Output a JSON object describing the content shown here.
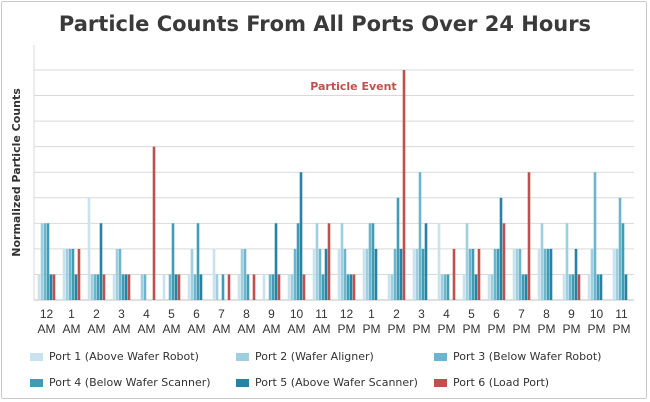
{
  "chart_data": {
    "type": "bar",
    "title": "Particle Counts From All Ports Over 24 Hours",
    "ylabel": "Normalized Particle Counts",
    "xlabel": "",
    "ylim": [
      0,
      9
    ],
    "grid": true,
    "legend_position": "bottom",
    "categories": [
      [
        "12",
        "AM"
      ],
      [
        "1",
        "AM"
      ],
      [
        "2",
        "AM"
      ],
      [
        "3",
        "AM"
      ],
      [
        "4",
        "AM"
      ],
      [
        "5",
        "AM"
      ],
      [
        "6",
        "AM"
      ],
      [
        "7",
        "AM"
      ],
      [
        "8",
        "AM"
      ],
      [
        "9",
        "AM"
      ],
      [
        "10",
        "AM"
      ],
      [
        "11",
        "AM"
      ],
      [
        "12",
        "PM"
      ],
      [
        "1",
        "PM"
      ],
      [
        "2",
        "PM"
      ],
      [
        "3",
        "PM"
      ],
      [
        "4",
        "PM"
      ],
      [
        "5",
        "PM"
      ],
      [
        "6",
        "PM"
      ],
      [
        "7",
        "PM"
      ],
      [
        "8",
        "PM"
      ],
      [
        "9",
        "PM"
      ],
      [
        "10",
        "PM"
      ],
      [
        "11",
        "PM"
      ]
    ],
    "series": [
      {
        "name": "Port 1 (Above Wafer Robot)",
        "color": "#c9e2ee",
        "values": [
          1,
          2,
          4,
          1,
          0,
          1,
          1,
          2,
          1,
          1,
          1,
          2,
          2,
          2,
          1,
          2,
          3,
          1,
          1,
          2,
          2,
          1,
          1,
          2
        ]
      },
      {
        "name": "Port 2 (Wafer Aligner)",
        "color": "#9fcfdf",
        "values": [
          3,
          2,
          1,
          2,
          1,
          0,
          2,
          1,
          2,
          0,
          1,
          3,
          3,
          2,
          1,
          2,
          1,
          3,
          1,
          2,
          3,
          3,
          2,
          2
        ]
      },
      {
        "name": "Port 3 (Below Wafer Robot)",
        "color": "#6cb6cd",
        "values": [
          3,
          2,
          1,
          2,
          1,
          1,
          1,
          0,
          2,
          1,
          2,
          2,
          2,
          3,
          2,
          5,
          1,
          2,
          2,
          2,
          2,
          1,
          5,
          4
        ]
      },
      {
        "name": "Port 4 (Below Wafer Scanner)",
        "color": "#3e9db5",
        "values": [
          3,
          2,
          1,
          1,
          0,
          3,
          3,
          1,
          1,
          1,
          3,
          1,
          1,
          3,
          4,
          2,
          1,
          2,
          2,
          1,
          2,
          1,
          1,
          3
        ]
      },
      {
        "name": "Port 5 (Above Wafer Scanner)",
        "color": "#2682a2",
        "values": [
          1,
          1,
          3,
          1,
          0,
          1,
          1,
          0,
          0,
          3,
          5,
          2,
          1,
          2,
          2,
          3,
          0,
          1,
          4,
          1,
          2,
          2,
          1,
          1
        ]
      },
      {
        "name": "Port 6 (Load Port)",
        "color": "#c0504d",
        "values": [
          1,
          2,
          1,
          1,
          6,
          1,
          0,
          1,
          1,
          1,
          1,
          3,
          1,
          0,
          9,
          0,
          2,
          2,
          3,
          5,
          0,
          1,
          0,
          0
        ]
      }
    ],
    "annotations": [
      {
        "text": "Particle Event",
        "category_index": 14,
        "series": "Port 6 (Load Port)",
        "color": "#c0504d"
      }
    ]
  }
}
